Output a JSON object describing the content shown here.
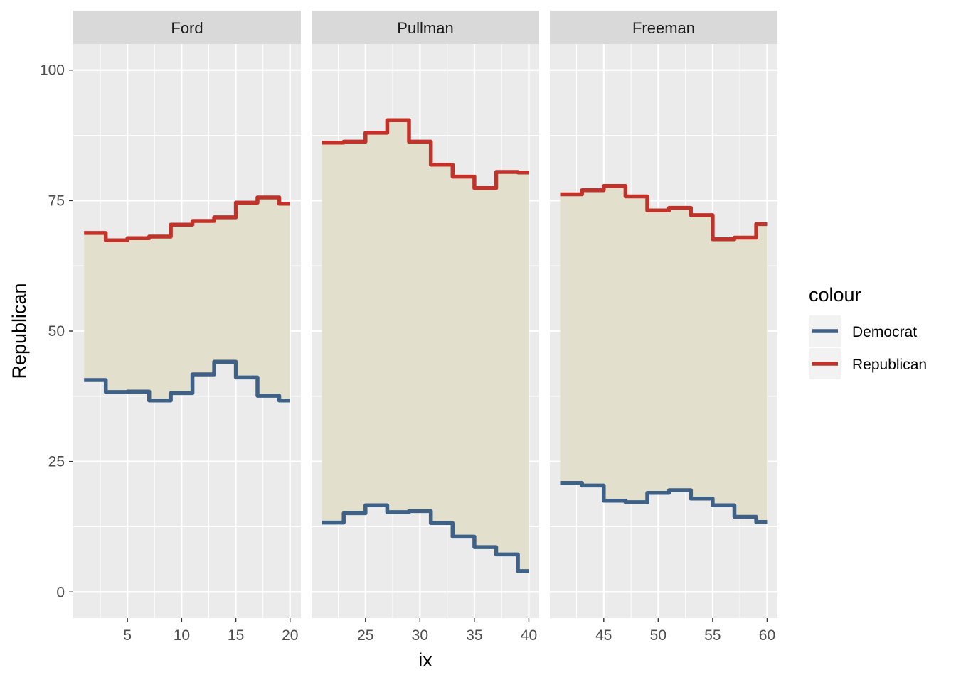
{
  "chart_data": {
    "type": "line",
    "facet_var": "",
    "xlabel": "ix",
    "ylabel": "Republican",
    "ylim": [
      -5,
      105
    ],
    "y_ticks": [
      0,
      25,
      50,
      75,
      100
    ],
    "ribbon_fill": "#e2dfcc",
    "panel_background": "#ebebeb",
    "strip_background": "#d9d9d9",
    "legend": {
      "title": "colour",
      "position": "right",
      "entries": [
        {
          "name": "Democrat",
          "color": "#3f6185"
        },
        {
          "name": "Republican",
          "color": "#c0332b"
        }
      ]
    },
    "panels": [
      {
        "strip": "Ford",
        "xlim": [
          0,
          21
        ],
        "x_ticks": [
          5,
          10,
          15,
          20
        ],
        "x": [
          1,
          2,
          3,
          4,
          5,
          6,
          7,
          8,
          9,
          10,
          11,
          12,
          13,
          14,
          15,
          16,
          17,
          18,
          19,
          20
        ],
        "series": [
          {
            "name": "Democrat",
            "values": [
              40.6,
              40.6,
              38.3,
              38.3,
              38.4,
              38.4,
              36.7,
              36.7,
              38.1,
              38.1,
              41.7,
              41.7,
              44.1,
              44.1,
              41.1,
              41.1,
              37.6,
              37.6,
              36.7,
              36.7
            ]
          },
          {
            "name": "Republican",
            "values": [
              68.8,
              68.8,
              67.4,
              67.4,
              67.8,
              67.8,
              68.1,
              68.1,
              70.4,
              70.4,
              71.1,
              71.1,
              71.8,
              71.8,
              74.6,
              74.6,
              75.6,
              75.6,
              74.4,
              74.4
            ]
          }
        ]
      },
      {
        "strip": "Pullman",
        "xlim": [
          20.05,
          40.95
        ],
        "x_ticks": [
          25,
          30,
          35,
          40
        ],
        "x": [
          21,
          22,
          23,
          24,
          25,
          26,
          27,
          28,
          29,
          30,
          31,
          32,
          33,
          34,
          35,
          36,
          37,
          38,
          39,
          40
        ],
        "series": [
          {
            "name": "Democrat",
            "values": [
              13.3,
              13.3,
              15.1,
              15.1,
              16.6,
              16.6,
              15.3,
              15.3,
              15.5,
              15.5,
              13.2,
              13.2,
              10.6,
              10.6,
              8.6,
              8.6,
              7.2,
              7.2,
              4.0,
              4.0
            ]
          },
          {
            "name": "Republican",
            "values": [
              86.1,
              86.1,
              86.3,
              86.3,
              88.0,
              88.0,
              90.4,
              90.4,
              86.3,
              86.3,
              81.9,
              81.9,
              79.6,
              79.6,
              77.4,
              77.4,
              80.5,
              80.5,
              80.4,
              80.4
            ]
          }
        ]
      },
      {
        "strip": "Freeman",
        "xlim": [
          40.05,
          60.95
        ],
        "x_ticks": [
          45,
          50,
          55,
          60
        ],
        "x": [
          41,
          42,
          43,
          44,
          45,
          46,
          47,
          48,
          49,
          50,
          51,
          52,
          53,
          54,
          55,
          56,
          57,
          58,
          59,
          60
        ],
        "series": [
          {
            "name": "Democrat",
            "values": [
              20.9,
              20.9,
              20.4,
              20.4,
              17.5,
              17.5,
              17.2,
              17.2,
              19.0,
              19.0,
              19.5,
              19.5,
              17.9,
              17.9,
              16.6,
              16.6,
              14.4,
              14.4,
              13.4,
              13.4
            ]
          },
          {
            "name": "Republican",
            "values": [
              76.2,
              76.2,
              77.0,
              77.0,
              77.8,
              77.8,
              75.8,
              75.8,
              73.1,
              73.1,
              73.6,
              73.6,
              72.2,
              72.2,
              67.6,
              67.6,
              67.9,
              67.9,
              70.5,
              70.5
            ]
          }
        ]
      }
    ]
  }
}
